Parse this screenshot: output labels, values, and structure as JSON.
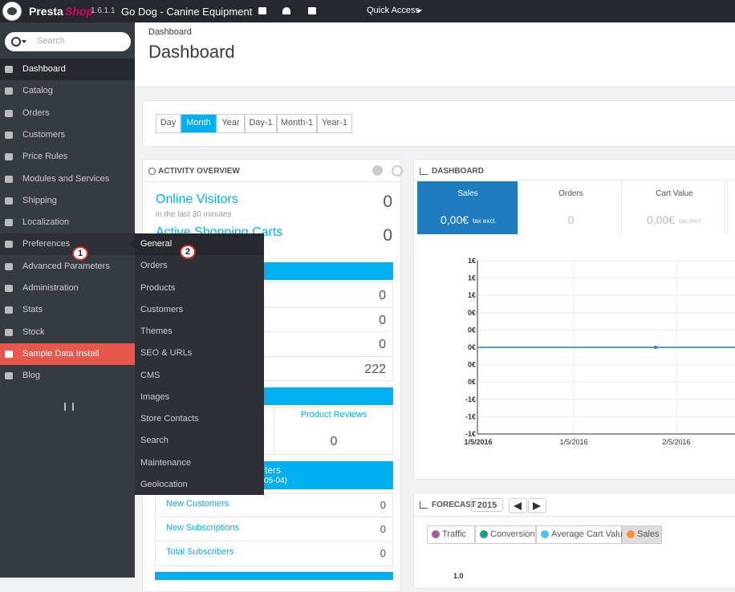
{
  "topbar": {
    "brand_a": "Presta",
    "brand_b": "Shop",
    "version": "1.6.1.1",
    "shop_name": "Go Dog - Canine Equipment",
    "quick_access": "Quick Access"
  },
  "sidebar": {
    "search_placeholder": "Search",
    "menu": [
      "Dashboard",
      "Catalog",
      "Orders",
      "Customers",
      "Price Rules",
      "Modules and Services",
      "Shipping",
      "Localization",
      "Preferences",
      "Advanced Parameters",
      "Administration",
      "Stats",
      "Stock",
      "Sample Data Install",
      "Blog"
    ],
    "submenu": [
      "General",
      "Orders",
      "Products",
      "Customers",
      "Themes",
      "SEO & URLs",
      "CMS",
      "Images",
      "Store Contacts",
      "Search",
      "Maintenance",
      "Geolocation"
    ]
  },
  "callouts": [
    "1",
    "2"
  ],
  "header": {
    "breadcrumb": "Dashboard",
    "title": "Dashboard"
  },
  "date_buttons": [
    "Day",
    "Month",
    "Year",
    "Day-1",
    "Month-1",
    "Year-1"
  ],
  "activity": {
    "title": "Activity overview",
    "online_visitors": "Online Visitors",
    "online_visitors_value": "0",
    "online_visitors_note": "in the last 30 minutes",
    "active_carts": "Active Shopping Carts",
    "active_carts_value": "0",
    "list_values": [
      "0",
      "0",
      "0",
      "222"
    ],
    "product_reviews": "Product Reviews",
    "product_reviews_value": "0",
    "bar_fragment_a": "ters",
    "bar_fragment_b": "05-04)",
    "rows": [
      [
        "New Customers",
        "0"
      ],
      [
        "New Subscriptions",
        "0"
      ],
      [
        "Total Subscribers",
        "0"
      ]
    ]
  },
  "dashboard": {
    "title": "Dashboard",
    "kpis": [
      {
        "label": "Sales",
        "value": "0,00€",
        "note": "tax excl."
      },
      {
        "label": "Orders",
        "value": "0"
      },
      {
        "label": "Cart Value",
        "value": "0,00€",
        "note": "tax excl."
      }
    ],
    "yticks": [
      "1€",
      "1€",
      "1€",
      "0€",
      "0€",
      "0€",
      "0€",
      "0€",
      "-1€",
      "-1€",
      "-1€"
    ],
    "xticks": [
      "1/5/2016",
      "1/5/2016",
      "2/5/2016"
    ]
  },
  "forecast": {
    "title": "Forecast",
    "year": "2015",
    "legend": [
      {
        "name": "Traffic",
        "color": "#9e5ba1"
      },
      {
        "name": "Conversion",
        "color": "#1c9c8c"
      },
      {
        "name": "Average Cart Value",
        "color": "#4cc3e6"
      },
      {
        "name": "Sales",
        "color": "#f99031"
      }
    ],
    "y_fragment": "1.0"
  }
}
